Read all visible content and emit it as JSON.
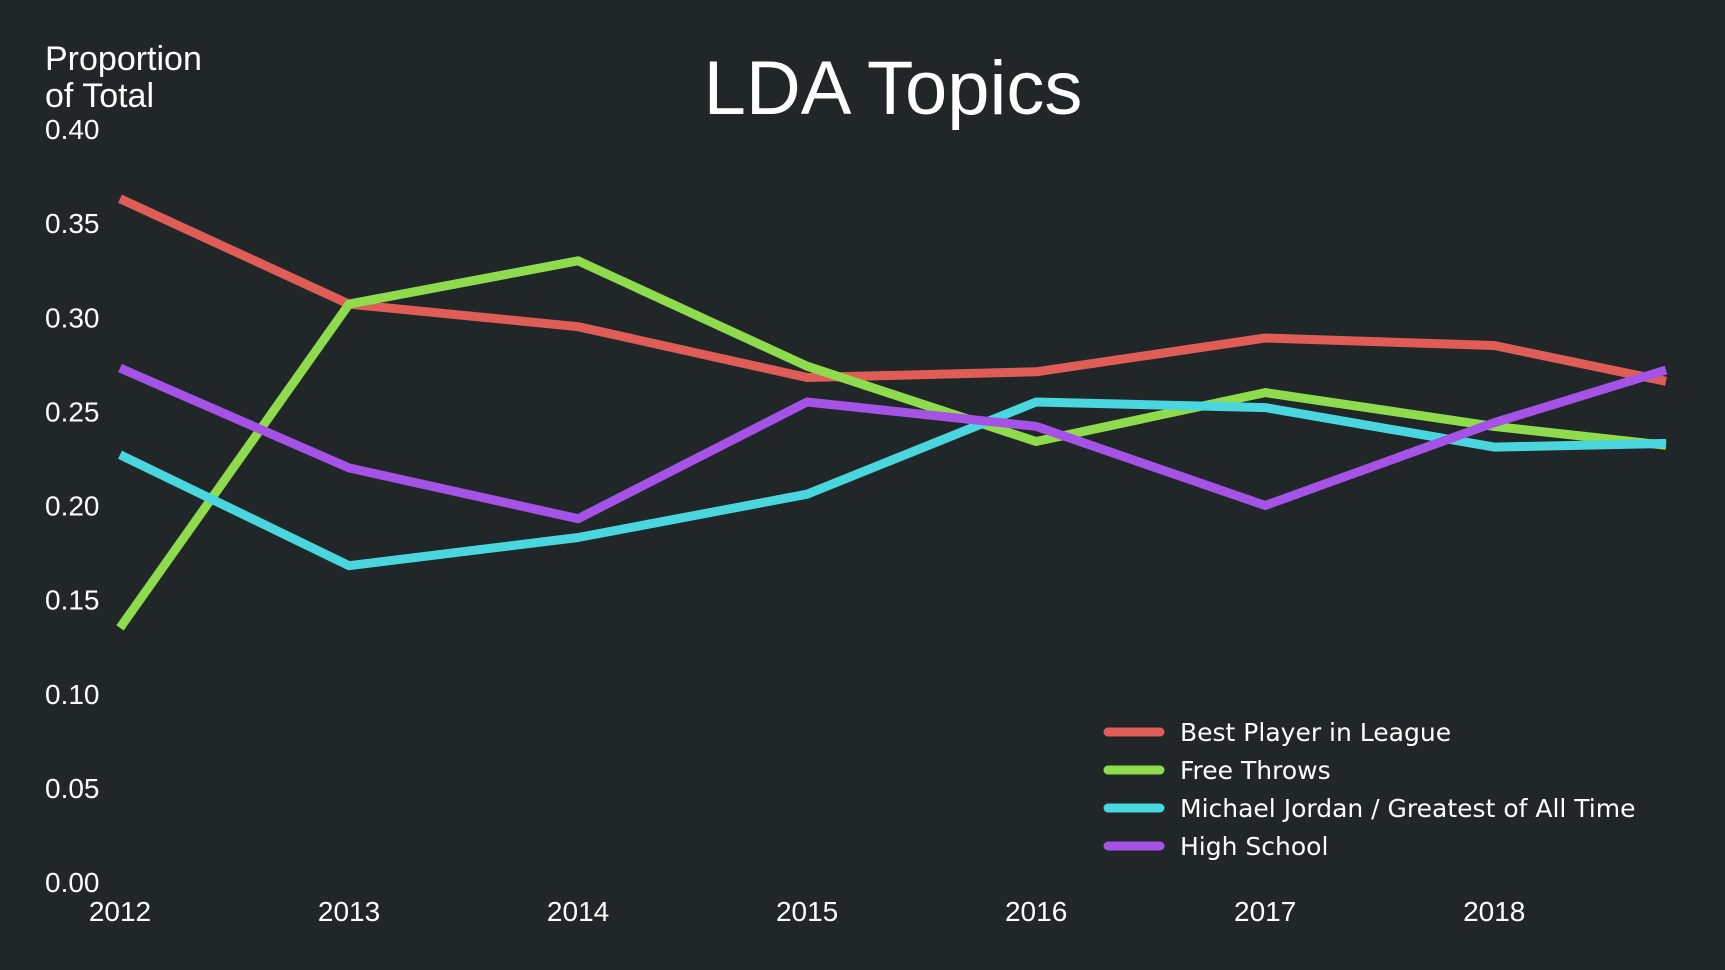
{
  "chart_data": {
    "type": "line",
    "title": "LDA  Topics",
    "ylabel_lines": [
      "Proportion",
      "of  Total"
    ],
    "xlabel": "",
    "x": [
      2012,
      2013,
      2014,
      2015,
      2016,
      2017,
      2018,
      2018.75
    ],
    "xticks": [
      "2012",
      "2013",
      "2014",
      "2015",
      "2016",
      "2017",
      "2018"
    ],
    "xlim": [
      2012,
      2018.75
    ],
    "ylim": [
      0,
      0.4
    ],
    "yticks": [
      "0.00",
      "0.05",
      "0.10",
      "0.15",
      "0.20",
      "0.25",
      "0.30",
      "0.35",
      "0.40"
    ],
    "grid": false,
    "legend_position": "lower-right",
    "background": "#212628",
    "series": [
      {
        "name": "Best Player in League",
        "color": "#e05d57",
        "values": [
          0.363,
          0.307,
          0.295,
          0.268,
          0.271,
          0.289,
          0.285,
          0.266
        ]
      },
      {
        "name": "Free Throws",
        "color": "#8fdb4e",
        "values": [
          0.135,
          0.307,
          0.33,
          0.274,
          0.234,
          0.26,
          0.242,
          0.232
        ]
      },
      {
        "name": "Michael Jordan / Greatest of All Time",
        "color": "#49d6df",
        "values": [
          0.227,
          0.168,
          0.183,
          0.206,
          0.255,
          0.252,
          0.231,
          0.233
        ]
      },
      {
        "name": "High School",
        "color": "#a552e6",
        "values": [
          0.273,
          0.22,
          0.193,
          0.255,
          0.242,
          0.2,
          0.244,
          0.272
        ]
      }
    ]
  }
}
